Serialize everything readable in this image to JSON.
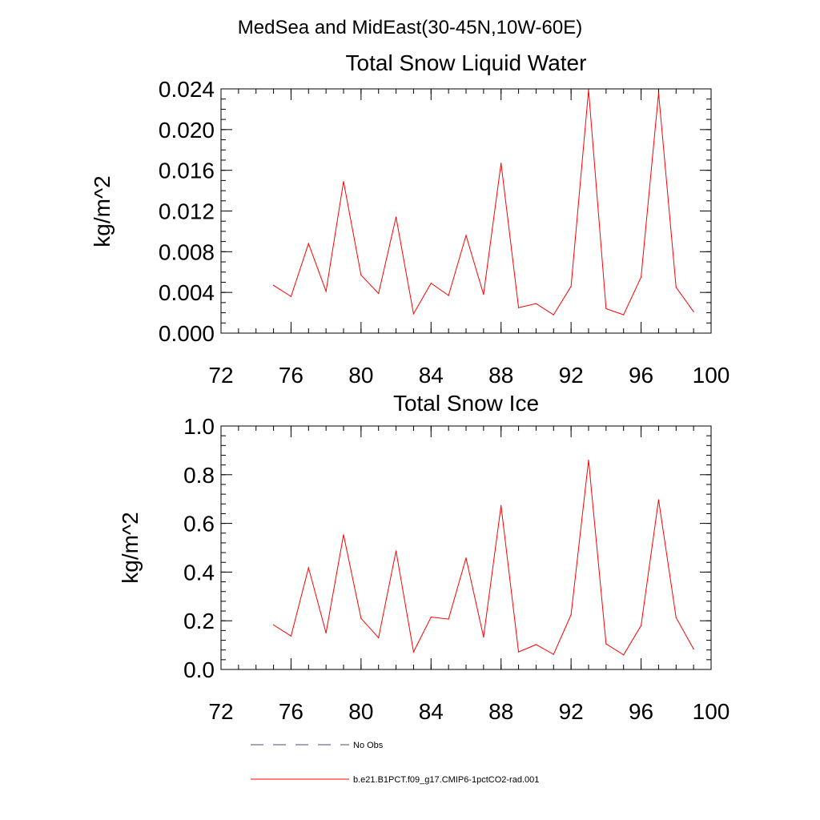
{
  "figure": {
    "title": "MedSea and MidEast(30-45N,10W-60E)"
  },
  "legend": {
    "items": [
      {
        "label": "No Obs",
        "style": "dashed",
        "color": "#4a4a7a"
      },
      {
        "label": "b.e21.B1PCT.f09_g17.CMIP6-1pctCO2-rad.001",
        "style": "solid",
        "color": "#ff0000"
      }
    ]
  },
  "chart_data": [
    {
      "type": "line",
      "title": "Total Snow Liquid Water",
      "xlabel": "",
      "ylabel": "kg/m^2",
      "xlim": [
        72,
        100
      ],
      "ylim": [
        0,
        0.024
      ],
      "xticks": [
        "72",
        "76",
        "80",
        "84",
        "88",
        "92",
        "96",
        "100"
      ],
      "yticks": [
        "0.000",
        "0.004",
        "0.008",
        "0.012",
        "0.016",
        "0.020",
        "0.024"
      ],
      "x": [
        75,
        76,
        77,
        78,
        79,
        80,
        81,
        82,
        83,
        84,
        85,
        86,
        87,
        88,
        89,
        90,
        91,
        92,
        93,
        94,
        95,
        96,
        97,
        98,
        99
      ],
      "series": [
        {
          "name": "b.e21.B1PCT.f09_g17.CMIP6-1pctCO2-rad.001",
          "color": "#ff0000",
          "values": [
            0.0047,
            0.0036,
            0.0088,
            0.0041,
            0.0149,
            0.0057,
            0.0039,
            0.0114,
            0.0019,
            0.0049,
            0.0037,
            0.0096,
            0.0038,
            0.0167,
            0.0025,
            0.0029,
            0.0018,
            0.0046,
            0.0239,
            0.0024,
            0.0018,
            0.0055,
            0.0236,
            0.0045,
            0.0021
          ]
        }
      ],
      "grid": false
    },
    {
      "type": "line",
      "title": "Total Snow Ice",
      "xlabel": "",
      "ylabel": "kg/m^2",
      "xlim": [
        72,
        100
      ],
      "ylim": [
        0,
        1.0
      ],
      "xticks": [
        "72",
        "76",
        "80",
        "84",
        "88",
        "92",
        "96",
        "100"
      ],
      "yticks": [
        "0.0",
        "0.2",
        "0.4",
        "0.6",
        "0.8",
        "1.0"
      ],
      "x": [
        75,
        76,
        77,
        78,
        79,
        80,
        81,
        82,
        83,
        84,
        85,
        86,
        87,
        88,
        89,
        90,
        91,
        92,
        93,
        94,
        95,
        96,
        97,
        98,
        99
      ],
      "series": [
        {
          "name": "b.e21.B1PCT.f09_g17.CMIP6-1pctCO2-rad.001",
          "color": "#ff0000",
          "values": [
            0.183,
            0.137,
            0.418,
            0.15,
            0.553,
            0.21,
            0.13,
            0.487,
            0.072,
            0.215,
            0.207,
            0.458,
            0.133,
            0.673,
            0.072,
            0.102,
            0.062,
            0.225,
            0.86,
            0.105,
            0.06,
            0.18,
            0.697,
            0.213,
            0.084
          ]
        }
      ],
      "grid": false
    }
  ]
}
